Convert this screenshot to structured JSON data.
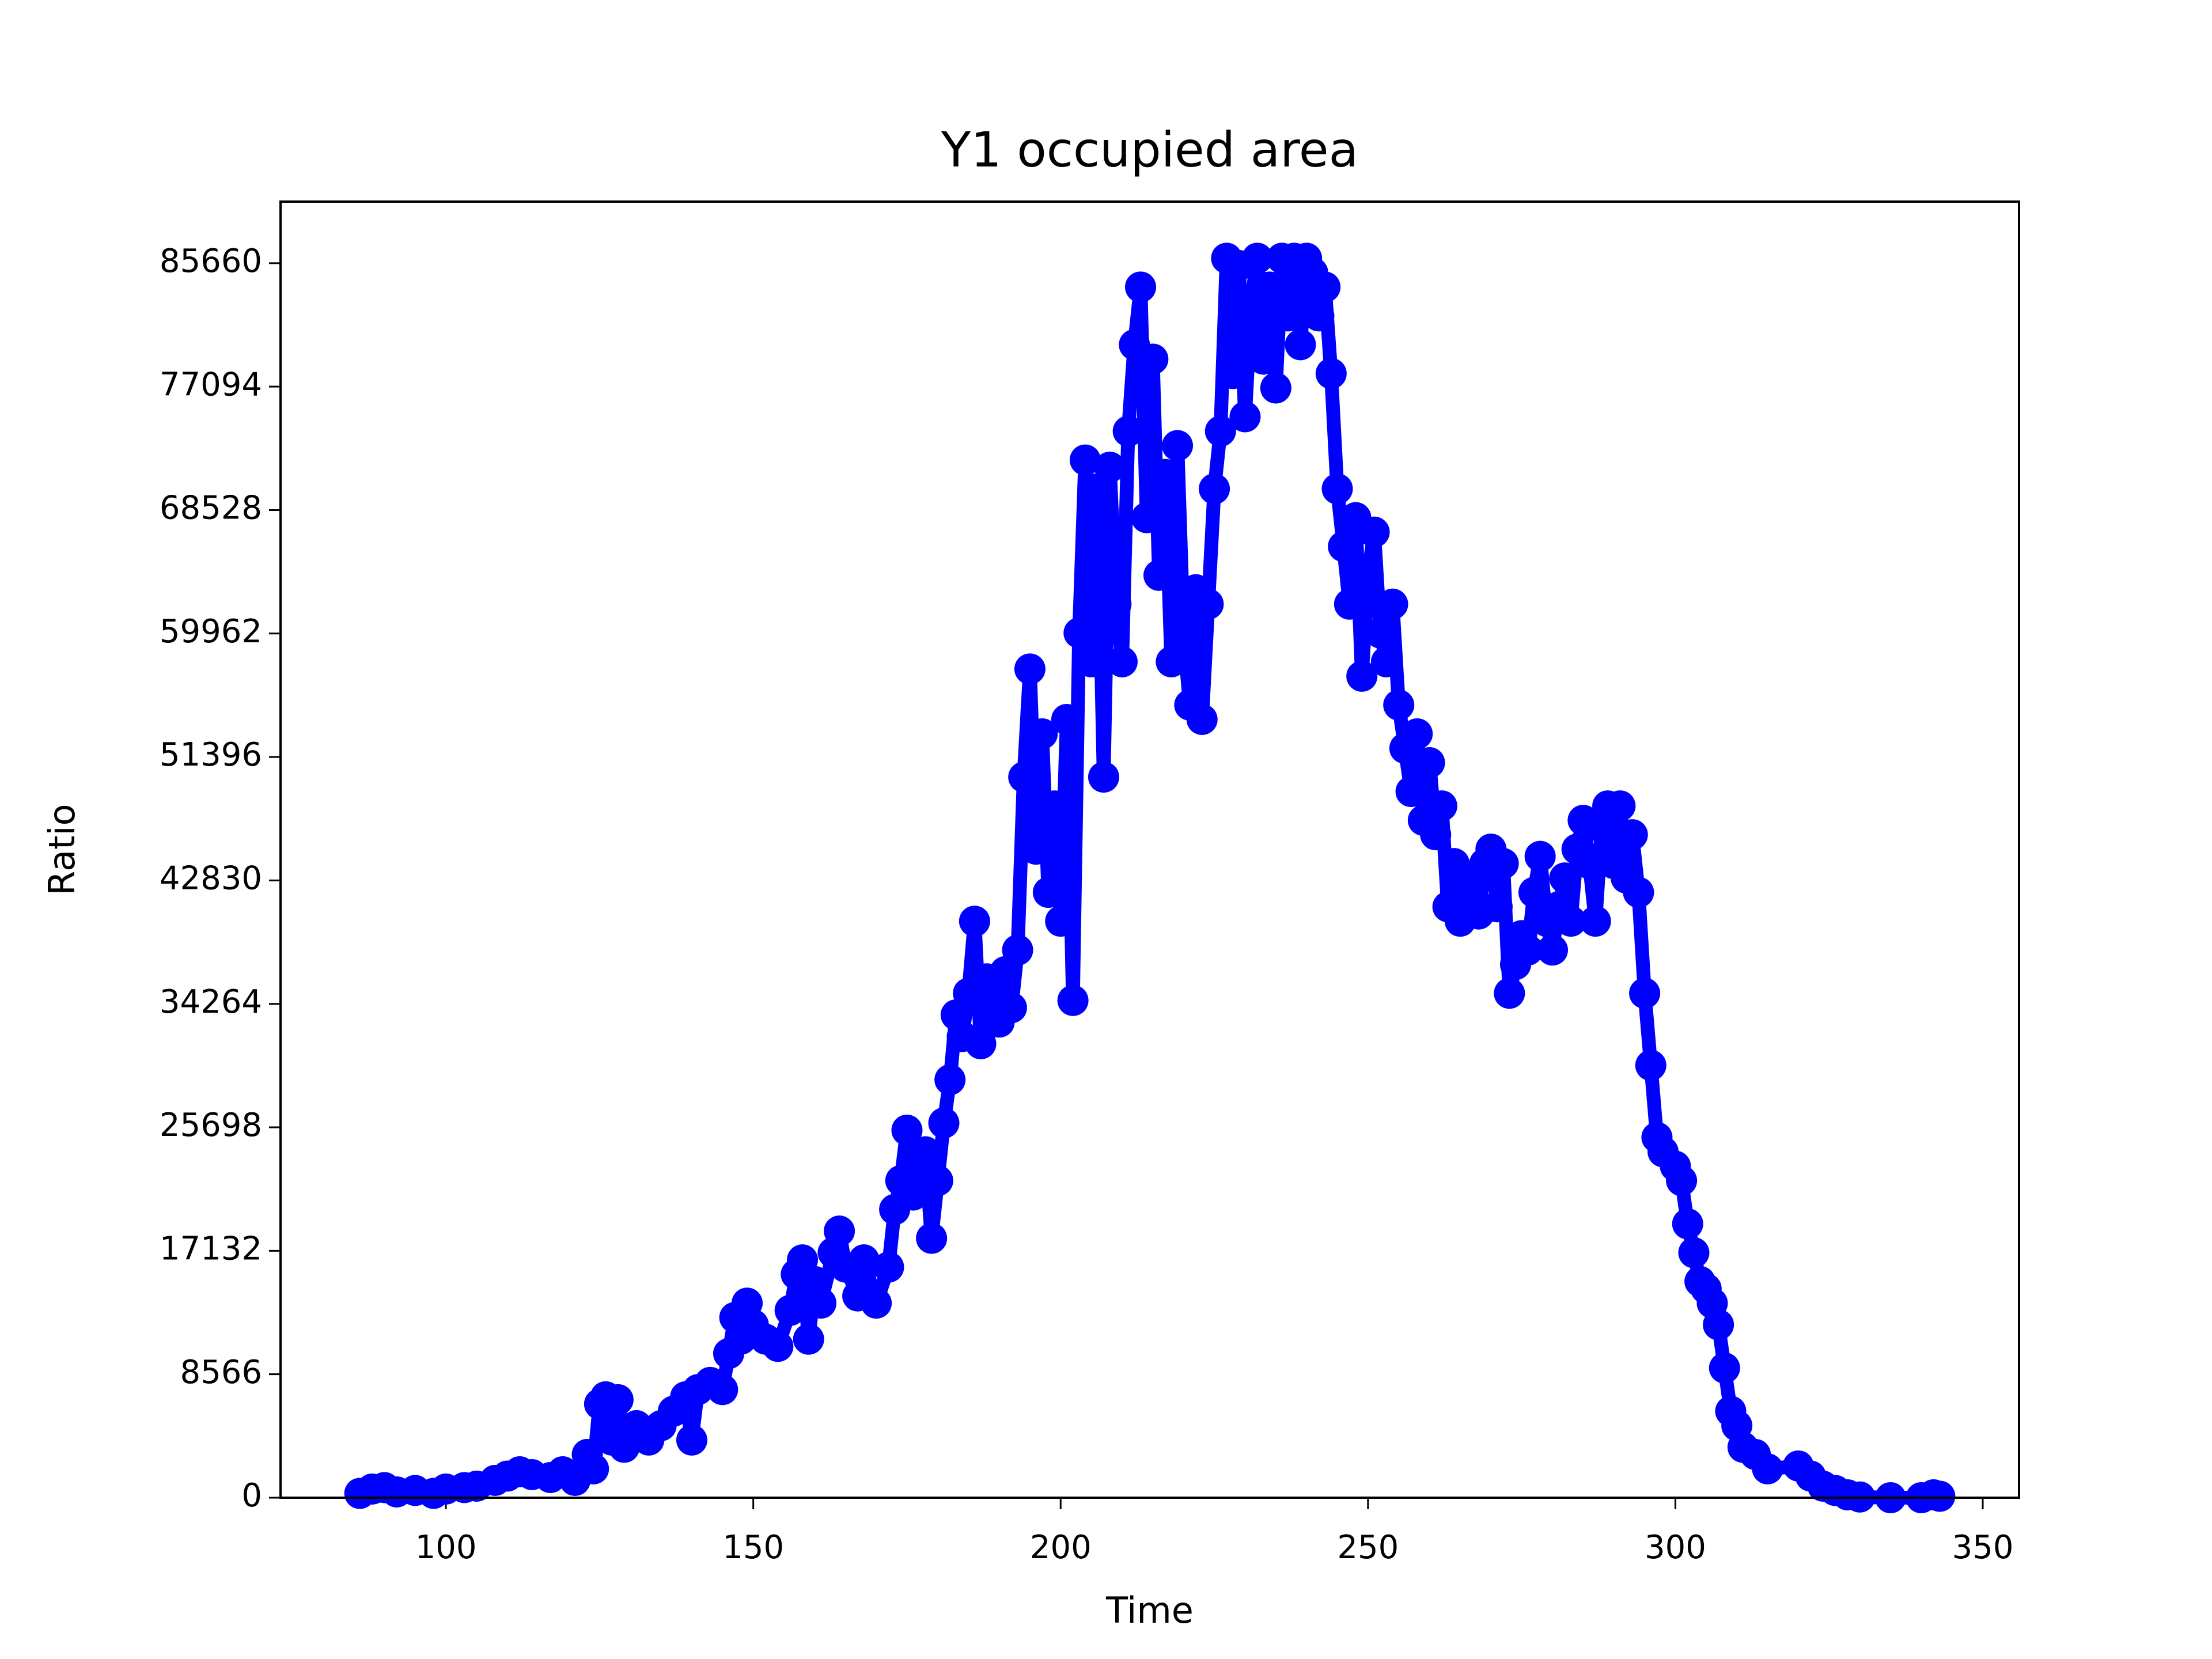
{
  "chart_data": {
    "type": "line",
    "title": "Y1 occupied area",
    "x_label": "Time",
    "y_label": "Ratio",
    "color": "#0000ff",
    "markers": true,
    "x": [
      86,
      88,
      90,
      92,
      95,
      98,
      100,
      103,
      105,
      108,
      110,
      112,
      114,
      117,
      119,
      121,
      123,
      124,
      125,
      126,
      127,
      128,
      129,
      131,
      133,
      135,
      137,
      139,
      140,
      141,
      143,
      145,
      146,
      147,
      148,
      149,
      150,
      152,
      154,
      156,
      157,
      158,
      159,
      160,
      161,
      163,
      164,
      165,
      167,
      168,
      170,
      172,
      173,
      174,
      175,
      176,
      178,
      179,
      180,
      181,
      182,
      183,
      184,
      185,
      186,
      187,
      188,
      190,
      191,
      192,
      193,
      194,
      195,
      196,
      197,
      198,
      199,
      200,
      201,
      202,
      203,
      204,
      205,
      206,
      207,
      208,
      209,
      210,
      211,
      212,
      213,
      214,
      215,
      216,
      217,
      218,
      219,
      220,
      221,
      222,
      223,
      224,
      225,
      226,
      227,
      228,
      229,
      230,
      231,
      232,
      233,
      234,
      235,
      236,
      237,
      238,
      239,
      240,
      241,
      242,
      243,
      244,
      245,
      246,
      247,
      248,
      249,
      250,
      251,
      252,
      253,
      254,
      255,
      256,
      257,
      258,
      259,
      260,
      261,
      262,
      263,
      264,
      265,
      266,
      267,
      268,
      269,
      270,
      271,
      272,
      273,
      274,
      275,
      276,
      277,
      278,
      279,
      280,
      281,
      282,
      283,
      284,
      285,
      286,
      287,
      288,
      289,
      290,
      291,
      292,
      293,
      294,
      295,
      296,
      297,
      298,
      300,
      301,
      302,
      303,
      304,
      305,
      306,
      307,
      308,
      309,
      310,
      311,
      313,
      315,
      320,
      322,
      324,
      326,
      328,
      330,
      335,
      340,
      342,
      343
    ],
    "values": [
      300,
      600,
      700,
      400,
      500,
      300,
      600,
      700,
      800,
      1200,
      1500,
      1800,
      1600,
      1400,
      1800,
      1200,
      3000,
      2000,
      6500,
      7000,
      4000,
      6800,
      3500,
      5000,
      4000,
      5000,
      6000,
      7000,
      4000,
      7500,
      8000,
      7500,
      10000,
      12500,
      11000,
      13500,
      12000,
      11000,
      10500,
      13000,
      15500,
      16500,
      11000,
      15000,
      13500,
      17000,
      18500,
      16000,
      14000,
      16500,
      13500,
      16000,
      20000,
      22000,
      25500,
      21000,
      24000,
      18000,
      22000,
      26000,
      29000,
      33500,
      32000,
      35000,
      40000,
      31500,
      36000,
      33000,
      36500,
      34000,
      38000,
      50000,
      57500,
      45000,
      53000,
      42000,
      48000,
      40000,
      54000,
      34500,
      60000,
      72000,
      58000,
      70000,
      50000,
      71500,
      62000,
      58000,
      74000,
      80000,
      84000,
      68000,
      79000,
      64000,
      71000,
      58000,
      73000,
      60000,
      55000,
      63000,
      54000,
      62000,
      70000,
      74000,
      86000,
      78000,
      85500,
      75000,
      83000,
      86000,
      79000,
      84000,
      77000,
      86000,
      82000,
      86000,
      80000,
      86000,
      85000,
      82000,
      84000,
      78000,
      70000,
      66000,
      62000,
      68000,
      57000,
      64000,
      67000,
      60000,
      58000,
      62000,
      55000,
      52000,
      49000,
      53000,
      47000,
      51000,
      46000,
      48000,
      41000,
      44000,
      40000,
      43000,
      41000,
      40500,
      44000,
      45000,
      41000,
      44000,
      35000,
      37000,
      39000,
      38000,
      42000,
      44500,
      40000,
      38000,
      41000,
      43000,
      40000,
      45000,
      47000,
      44000,
      40000,
      46500,
      48000,
      44000,
      48000,
      43000,
      46000,
      42000,
      35000,
      30000,
      25000,
      24000,
      23000,
      22000,
      19000,
      17000,
      15000,
      14500,
      13500,
      12000,
      9000,
      6000,
      5000,
      3500,
      3000,
      2000,
      2200,
      1500,
      800,
      500,
      200,
      50,
      0,
      0,
      200,
      100
    ],
    "xlim": [
      73.1,
      355.9
    ],
    "ylim": [
      0,
      89930
    ],
    "xticks": [
      100,
      150,
      200,
      250,
      300,
      350
    ],
    "yticks": [
      0,
      8566,
      17132,
      25698,
      34264,
      42830,
      51396,
      59962,
      68528,
      77094,
      85660
    ],
    "grid": false
  }
}
